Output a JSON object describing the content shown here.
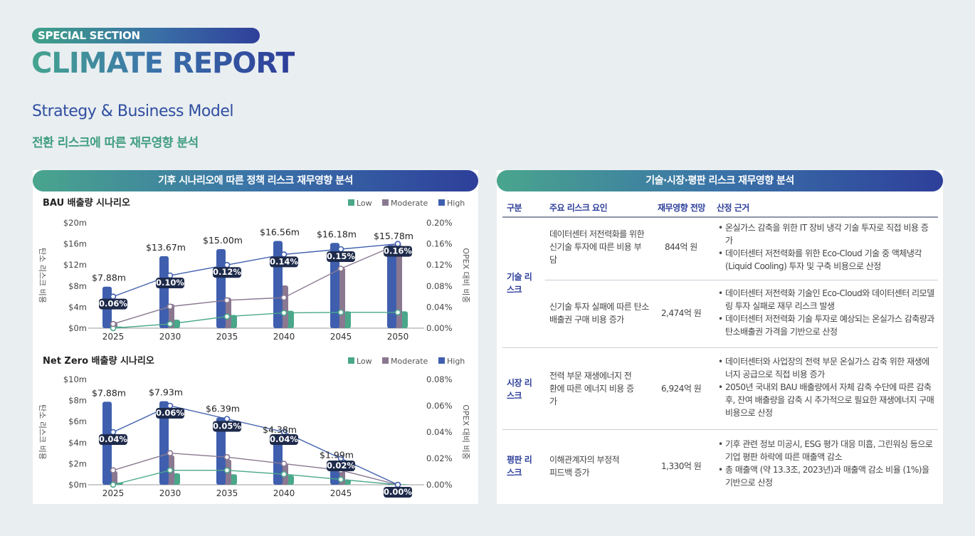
{
  "header": {
    "special": "SPECIAL SECTION",
    "title": "CLIMATE REPORT",
    "strategy": "Strategy & Business Model",
    "subtitle": "전환 리스크에 따른 재무영향 분석"
  },
  "left_panel": {
    "title": "기후 시나리오에 따른 정책 리스크 재무영향 분석",
    "legend": [
      "Low",
      "Moderate",
      "High"
    ]
  },
  "colors": {
    "low": "#4aa78a",
    "moderate": "#8a7891",
    "high": "#3f5fae",
    "dark": "#1e2a4a"
  },
  "chart_data": [
    {
      "type": "bar",
      "title": "BAU 배출량 시나리오",
      "ylabel": "탄소 리스크 비용",
      "y2label": "OPEX 대비 비중",
      "categories": [
        "2025",
        "2030",
        "2035",
        "2040",
        "2045",
        "2050"
      ],
      "ylim": [
        0,
        20
      ],
      "yticks": [
        "$0m",
        "$4m",
        "$8m",
        "$12m",
        "$16m",
        "$20m"
      ],
      "y2ticks": [
        "0.00%",
        "0.04%",
        "0.08%",
        "0.12%",
        "0.16%",
        "0.20%"
      ],
      "series": [
        {
          "name": "Low",
          "values": [
            0.3,
            1.6,
            2.5,
            3.3,
            3.2,
            3.2
          ]
        },
        {
          "name": "Moderate",
          "values": [
            1.2,
            4.6,
            5.8,
            8.1,
            11.5,
            15.8
          ]
        },
        {
          "name": "High",
          "values": [
            7.88,
            13.67,
            15.0,
            16.56,
            16.18,
            15.78
          ]
        }
      ],
      "high_labels": [
        "$7.88m",
        "$13.67m",
        "$15.00m",
        "$16.56m",
        "$16.18m",
        "$15.78m"
      ],
      "line_series": [
        {
          "name": "Low",
          "values": [
            0.0,
            0.008,
            0.022,
            0.029,
            0.03,
            0.03
          ]
        },
        {
          "name": "Moderate",
          "values": [
            0.008,
            0.041,
            0.053,
            0.058,
            0.113,
            0.159
          ]
        },
        {
          "name": "High",
          "values": [
            0.06,
            0.1,
            0.12,
            0.14,
            0.15,
            0.16
          ]
        }
      ],
      "pct_labels": [
        "0.06%",
        "0.10%",
        "0.12%",
        "0.14%",
        "0.15%",
        "0.16%"
      ]
    },
    {
      "type": "bar",
      "title": "Net Zero 배출량 시나리오",
      "ylabel": "탄소 리스크 비용",
      "y2label": "OPEX 대비 비중",
      "categories": [
        "2025",
        "2030",
        "2035",
        "2040",
        "2045",
        "2050"
      ],
      "ylim": [
        0,
        10
      ],
      "yticks": [
        "$0m",
        "$2m",
        "$4m",
        "$6m",
        "$8m",
        "$10m"
      ],
      "y2ticks": [
        "0.00%",
        "0.02%",
        "0.04%",
        "0.06%",
        "0.08%"
      ],
      "y2max": 0.08,
      "series": [
        {
          "name": "Low",
          "values": [
            0.2,
            1.1,
            1.0,
            0.9,
            0.5,
            0.05
          ]
        },
        {
          "name": "Moderate",
          "values": [
            1.3,
            2.8,
            2.4,
            2.0,
            1.6,
            0.05
          ]
        },
        {
          "name": "High",
          "values": [
            7.88,
            7.93,
            6.39,
            4.38,
            1.99,
            0.05
          ]
        }
      ],
      "high_labels": [
        "$7.88m",
        "$7.93m",
        "$6.39m",
        "$4.38m",
        "$1.99m",
        ""
      ],
      "line_series": [
        {
          "name": "Low",
          "values": [
            0.0,
            0.011,
            0.011,
            0.008,
            0.004,
            0.0
          ]
        },
        {
          "name": "Moderate",
          "values": [
            0.011,
            0.024,
            0.021,
            0.016,
            0.011,
            0.0
          ]
        },
        {
          "name": "High",
          "values": [
            0.04,
            0.06,
            0.05,
            0.04,
            0.02,
            0.0
          ]
        }
      ],
      "pct_labels": [
        "0.04%",
        "0.06%",
        "0.05%",
        "0.04%",
        "0.02%",
        "0.00%"
      ]
    }
  ],
  "right_panel": {
    "title": "기술·시장·평판 리스크 재무영향 분석",
    "columns": [
      "구분",
      "주요 리스크 요인",
      "재무영향 전망",
      "산정 근거"
    ],
    "rows": [
      {
        "category": "기술 리스크",
        "factor": "데이터센터 저전력화를 위한 신기술 투자에 따른 비용 부담",
        "impact": "844억 원",
        "basis": [
          "온실가스 감축을 위한 IT 장비 냉각 기술 투자로 직접 비용 증가",
          "데이터센터 저전력화를 위한 Eco-Cloud 기술 중 액체냉각 (Liquid Cooling) 투자 및 구축 비용으로 산정"
        ]
      },
      {
        "category": "",
        "factor": "신기술 투자 실패에 따른 탄소배출권 구매 비용 증가",
        "impact": "2,474억 원",
        "basis": [
          "데이터센터 저전력화 기술인 Eco-Cloud와 데이터센터 리모델링 투자 실패로 재무 리스크 발생",
          "데이터센터 저전력화 기술 투자로 예상되는 온실가스 감축량과 탄소배출권 가격을 기반으로 산정"
        ]
      },
      {
        "category": "시장 리스크",
        "factor": "전력 부문 재생에너지 전환에 따른 에너지 비용 증가",
        "impact": "6,924억 원",
        "basis": [
          "데이터센터와 사업장의 전력 부문 온실가스 감축 위한 재생에너지 공급으로 직접 비용 증가",
          "2050년 국내외 BAU 배출량에서 자체 감축 수단에 따른 감축 후, 잔여 배출량을 감축 시 추가적으로 필요한 재생에너지 구매 비용으로 산정"
        ]
      },
      {
        "category": "평판 리스크",
        "factor": "이해관계자의 부정적 피드백 증가",
        "impact": "1,330억 원",
        "basis": [
          "기후 관련 정보 미공시, ESG 평가 대응 미흡, 그린워싱 등으로 기업 평판 하락에 따른 매출액 감소",
          "총 매출액 (약 13.3조, 2023년)과 매출액 감소 비율 (1%)을 기반으로 산정"
        ]
      }
    ]
  }
}
